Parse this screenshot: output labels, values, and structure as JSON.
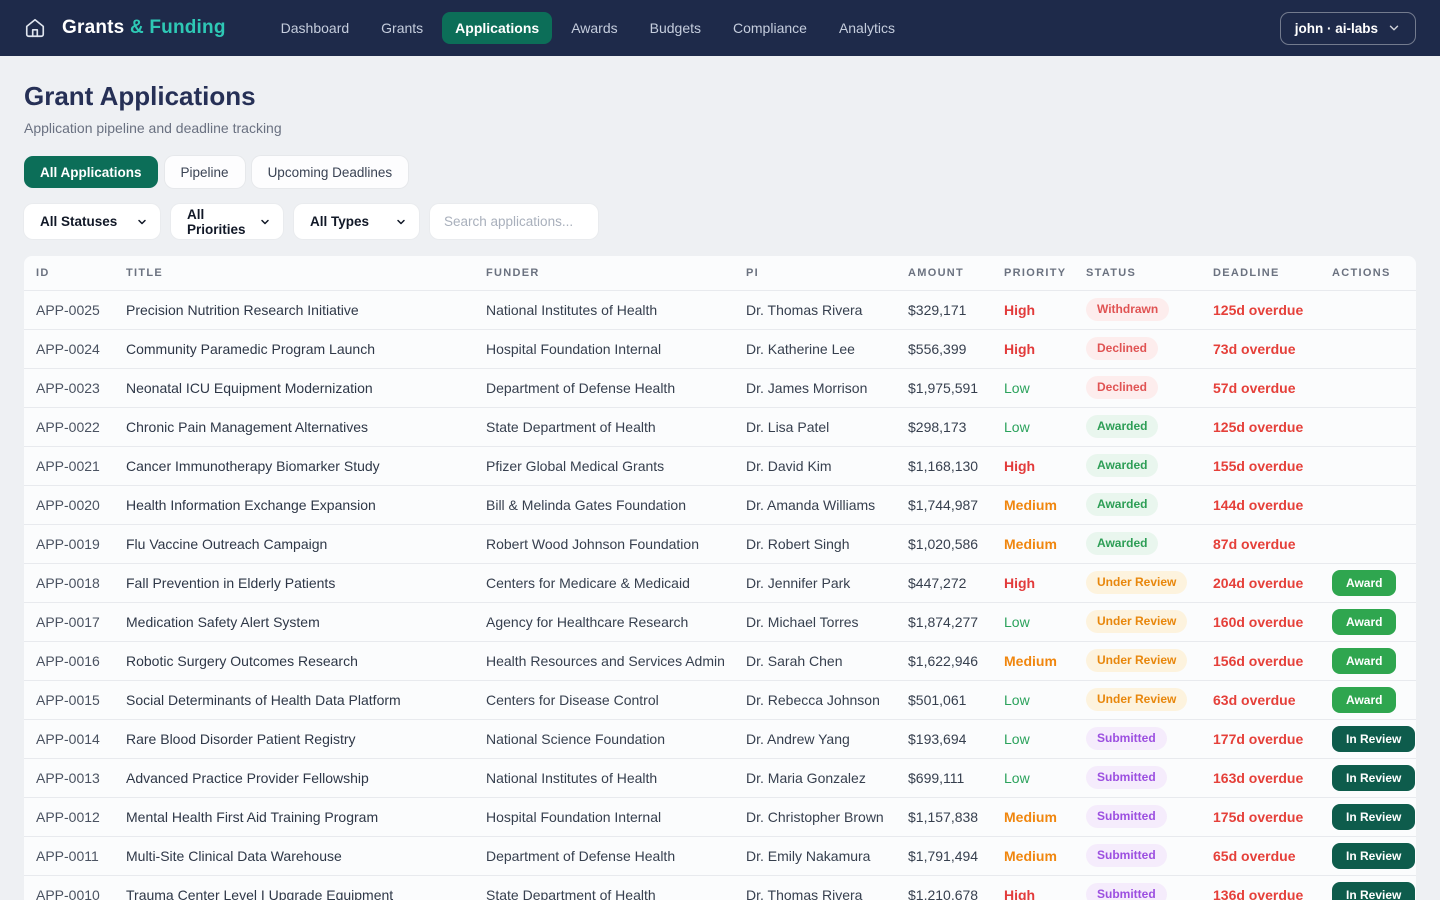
{
  "navbar": {
    "logo_primary": "Grants",
    "logo_accent": "& Funding",
    "items": [
      {
        "label": "Dashboard",
        "active": false
      },
      {
        "label": "Grants",
        "active": false
      },
      {
        "label": "Applications",
        "active": true
      },
      {
        "label": "Awards",
        "active": false
      },
      {
        "label": "Budgets",
        "active": false
      },
      {
        "label": "Compliance",
        "active": false
      },
      {
        "label": "Analytics",
        "active": false
      }
    ],
    "user_label": "john · ai-labs"
  },
  "header": {
    "title": "Grant Applications",
    "subtitle": "Application pipeline and deadline tracking"
  },
  "tabs": [
    {
      "label": "All Applications",
      "active": true
    },
    {
      "label": "Pipeline",
      "active": false
    },
    {
      "label": "Upcoming Deadlines",
      "active": false
    }
  ],
  "filters": {
    "status": "All Statuses",
    "priority": "All Priorities",
    "type": "All Types",
    "search_placeholder": "Search applications..."
  },
  "colors": {
    "navbar_bg": "#1e2a4a",
    "brand_accent": "#2ec8b5",
    "active_green": "#0c6e58",
    "priority_high": "#e23b3b",
    "priority_medium": "#f0860e",
    "priority_low": "#2ba25c",
    "deadline_red": "#e5403a",
    "award_button": "#2fa64f",
    "in_review_button": "#0e5c4c"
  },
  "table": {
    "columns": [
      "ID",
      "Title",
      "Funder",
      "PI",
      "Amount",
      "Priority",
      "Status",
      "Deadline",
      "Actions"
    ],
    "rows": [
      {
        "id": "APP-0025",
        "title": "Precision Nutrition Research Initiative",
        "funder": "National Institutes of Health",
        "pi": "Dr. Thomas Rivera",
        "amount": "$329,171",
        "priority": "High",
        "status": "Withdrawn",
        "deadline": "125d overdue",
        "action": null
      },
      {
        "id": "APP-0024",
        "title": "Community Paramedic Program Launch",
        "funder": "Hospital Foundation Internal",
        "pi": "Dr. Katherine Lee",
        "amount": "$556,399",
        "priority": "High",
        "status": "Declined",
        "deadline": "73d overdue",
        "action": null
      },
      {
        "id": "APP-0023",
        "title": "Neonatal ICU Equipment Modernization",
        "funder": "Department of Defense Health",
        "pi": "Dr. James Morrison",
        "amount": "$1,975,591",
        "priority": "Low",
        "status": "Declined",
        "deadline": "57d overdue",
        "action": null
      },
      {
        "id": "APP-0022",
        "title": "Chronic Pain Management Alternatives",
        "funder": "State Department of Health",
        "pi": "Dr. Lisa Patel",
        "amount": "$298,173",
        "priority": "Low",
        "status": "Awarded",
        "deadline": "125d overdue",
        "action": null
      },
      {
        "id": "APP-0021",
        "title": "Cancer Immunotherapy Biomarker Study",
        "funder": "Pfizer Global Medical Grants",
        "pi": "Dr. David Kim",
        "amount": "$1,168,130",
        "priority": "High",
        "status": "Awarded",
        "deadline": "155d overdue",
        "action": null
      },
      {
        "id": "APP-0020",
        "title": "Health Information Exchange Expansion",
        "funder": "Bill & Melinda Gates Foundation",
        "pi": "Dr. Amanda Williams",
        "amount": "$1,744,987",
        "priority": "Medium",
        "status": "Awarded",
        "deadline": "144d overdue",
        "action": null
      },
      {
        "id": "APP-0019",
        "title": "Flu Vaccine Outreach Campaign",
        "funder": "Robert Wood Johnson Foundation",
        "pi": "Dr. Robert Singh",
        "amount": "$1,020,586",
        "priority": "Medium",
        "status": "Awarded",
        "deadline": "87d overdue",
        "action": null
      },
      {
        "id": "APP-0018",
        "title": "Fall Prevention in Elderly Patients",
        "funder": "Centers for Medicare & Medicaid",
        "pi": "Dr. Jennifer Park",
        "amount": "$447,272",
        "priority": "High",
        "status": "Under Review",
        "deadline": "204d overdue",
        "action": "Award"
      },
      {
        "id": "APP-0017",
        "title": "Medication Safety Alert System",
        "funder": "Agency for Healthcare Research",
        "pi": "Dr. Michael Torres",
        "amount": "$1,874,277",
        "priority": "Low",
        "status": "Under Review",
        "deadline": "160d overdue",
        "action": "Award"
      },
      {
        "id": "APP-0016",
        "title": "Robotic Surgery Outcomes Research",
        "funder": "Health Resources and Services Admin",
        "pi": "Dr. Sarah Chen",
        "amount": "$1,622,946",
        "priority": "Medium",
        "status": "Under Review",
        "deadline": "156d overdue",
        "action": "Award"
      },
      {
        "id": "APP-0015",
        "title": "Social Determinants of Health Data Platform",
        "funder": "Centers for Disease Control",
        "pi": "Dr. Rebecca Johnson",
        "amount": "$501,061",
        "priority": "Low",
        "status": "Under Review",
        "deadline": "63d overdue",
        "action": "Award"
      },
      {
        "id": "APP-0014",
        "title": "Rare Blood Disorder Patient Registry",
        "funder": "National Science Foundation",
        "pi": "Dr. Andrew Yang",
        "amount": "$193,694",
        "priority": "Low",
        "status": "Submitted",
        "deadline": "177d overdue",
        "action": "In Review"
      },
      {
        "id": "APP-0013",
        "title": "Advanced Practice Provider Fellowship",
        "funder": "National Institutes of Health",
        "pi": "Dr. Maria Gonzalez",
        "amount": "$699,111",
        "priority": "Low",
        "status": "Submitted",
        "deadline": "163d overdue",
        "action": "In Review"
      },
      {
        "id": "APP-0012",
        "title": "Mental Health First Aid Training Program",
        "funder": "Hospital Foundation Internal",
        "pi": "Dr. Christopher Brown",
        "amount": "$1,157,838",
        "priority": "Medium",
        "status": "Submitted",
        "deadline": "175d overdue",
        "action": "In Review"
      },
      {
        "id": "APP-0011",
        "title": "Multi-Site Clinical Data Warehouse",
        "funder": "Department of Defense Health",
        "pi": "Dr. Emily Nakamura",
        "amount": "$1,791,494",
        "priority": "Medium",
        "status": "Submitted",
        "deadline": "65d overdue",
        "action": "In Review"
      },
      {
        "id": "APP-0010",
        "title": "Trauma Center Level I Upgrade Equipment",
        "funder": "State Department of Health",
        "pi": "Dr. Thomas Rivera",
        "amount": "$1,210,678",
        "priority": "High",
        "status": "Submitted",
        "deadline": "136d overdue",
        "action": "In Review"
      }
    ]
  }
}
